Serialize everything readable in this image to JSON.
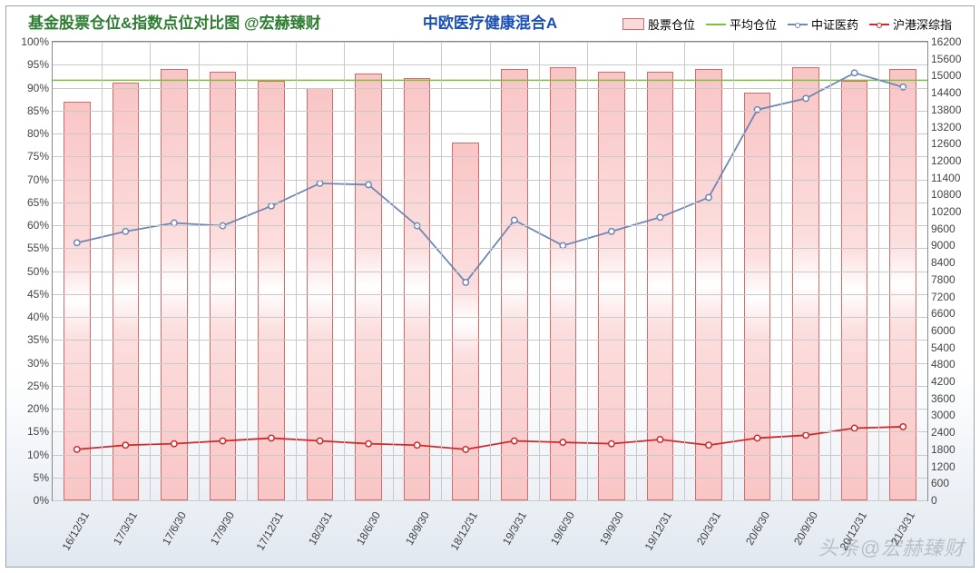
{
  "chart": {
    "type": "combo-bar-line-dual-axis",
    "title": "基金股票仓位&指数点位对比图   @宏赫臻财",
    "title_color": "#2e7d32",
    "subtitle": "中欧医疗健康混合A",
    "subtitle_color": "#1a4fb3",
    "watermark": "头条@宏赫臻财",
    "background_gradient": [
      "#ffffff",
      "#e1e8f0"
    ],
    "border_color": "#9aa3b2",
    "grid_color": "#c9c9c9",
    "tick_fontsize": 12,
    "title_fontsize": 17,
    "legend_fontsize": 13,
    "x_labels": [
      "16/12/31",
      "17/3/31",
      "17/6/30",
      "17/9/30",
      "17/12/31",
      "18/3/31",
      "18/6/30",
      "18/9/30",
      "18/12/31",
      "19/3/31",
      "19/6/30",
      "19/9/30",
      "19/12/31",
      "20/3/31",
      "20/6/30",
      "20/9/30",
      "20/12/31",
      "21/3/31"
    ],
    "x_label_rotation": -60,
    "left_axis": {
      "min": 0,
      "max": 100,
      "step": 5,
      "fmt": "pct"
    },
    "right_axis": {
      "min": 0,
      "max": 16200,
      "step": 600,
      "fmt": "int"
    },
    "legend": [
      {
        "key": "bars",
        "label": "股票仓位",
        "color": "#f9c5c5",
        "border": "#d46a6a",
        "kind": "bar"
      },
      {
        "key": "avg",
        "label": "平均仓位",
        "color": "#7fbf3f",
        "kind": "line"
      },
      {
        "key": "cn",
        "label": "中证医药",
        "color": "#6f87b3",
        "marker_fill": "#ffffff",
        "kind": "line-mark"
      },
      {
        "key": "sh",
        "label": "沪港深综指",
        "color": "#cc2b2b",
        "marker_fill": "#ffffff",
        "kind": "line-mark"
      }
    ],
    "bars": {
      "values": [
        87,
        91,
        94,
        93.5,
        91.5,
        90,
        93,
        92,
        78,
        94,
        94.5,
        93.5,
        93.5,
        94,
        89,
        94.5,
        91.5,
        94
      ],
      "axis": "left",
      "bar_width_ratio": 0.55,
      "fill": "#f9c5c5",
      "border": "#d46a6a"
    },
    "avg_line": {
      "value": 91.6,
      "axis": "left",
      "color": "#7fbf3f",
      "width": 1.5
    },
    "cn_line": {
      "values": [
        9100,
        9500,
        9800,
        9700,
        10400,
        11200,
        11150,
        9700,
        7700,
        9900,
        9000,
        9500,
        10000,
        10700,
        13800,
        14200,
        15100,
        14600
      ],
      "axis": "right",
      "color": "#6f87b3",
      "width": 1.8,
      "marker": "circle",
      "marker_size": 6,
      "marker_fill": "#ffffff"
    },
    "sh_line": {
      "values": [
        1800,
        1950,
        2000,
        2100,
        2200,
        2100,
        2000,
        1950,
        1800,
        2100,
        2050,
        2000,
        2150,
        1950,
        2200,
        2300,
        2550,
        2600
      ],
      "axis": "right",
      "color": "#cc2b2b",
      "width": 1.8,
      "marker": "circle",
      "marker_size": 6,
      "marker_fill": "#ffffff"
    }
  }
}
